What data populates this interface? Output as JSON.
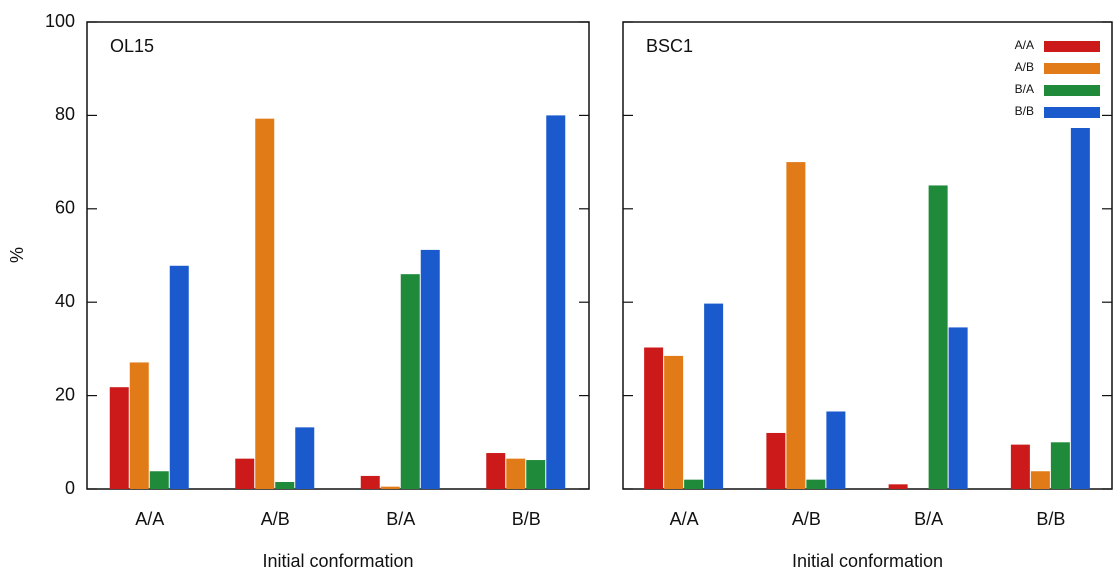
{
  "chart_data": [
    {
      "type": "bar",
      "title": "OL15",
      "xlabel": "Initial conformation",
      "ylabel": "%",
      "categories": [
        "A/A",
        "A/B",
        "B/A",
        "B/B"
      ],
      "series": [
        {
          "name": "A/A",
          "color": "#cc1a1a",
          "values": [
            21.8,
            6.5,
            2.8,
            7.7
          ]
        },
        {
          "name": "A/B",
          "color": "#e07b18",
          "values": [
            27.1,
            79.3,
            0.5,
            6.5
          ]
        },
        {
          "name": "B/A",
          "color": "#1e8a3a",
          "values": [
            3.8,
            1.5,
            46,
            6.2
          ]
        },
        {
          "name": "B/B",
          "color": "#1a5acc",
          "values": [
            47.8,
            13.2,
            51.2,
            80
          ]
        }
      ],
      "ylim": [
        0,
        100
      ],
      "yticks": [
        0,
        20,
        40,
        60,
        80,
        100
      ]
    },
    {
      "type": "bar",
      "title": "BSC1",
      "xlabel": "Initial conformation",
      "categories": [
        "A/A",
        "A/B",
        "B/A",
        "B/B"
      ],
      "series": [
        {
          "name": "A/A",
          "color": "#cc1a1a",
          "values": [
            30.3,
            12,
            1,
            9.5
          ]
        },
        {
          "name": "A/B",
          "color": "#e07b18",
          "values": [
            28.5,
            70,
            0,
            3.8
          ]
        },
        {
          "name": "B/A",
          "color": "#1e8a3a",
          "values": [
            2,
            2,
            65,
            10
          ]
        },
        {
          "name": "B/B",
          "color": "#1a5acc",
          "values": [
            39.7,
            16.6,
            34.6,
            77.3
          ]
        }
      ],
      "ylim": [
        0,
        100
      ],
      "yticks": [
        0,
        20,
        40,
        60,
        80,
        100
      ],
      "legend": "upper right"
    }
  ]
}
